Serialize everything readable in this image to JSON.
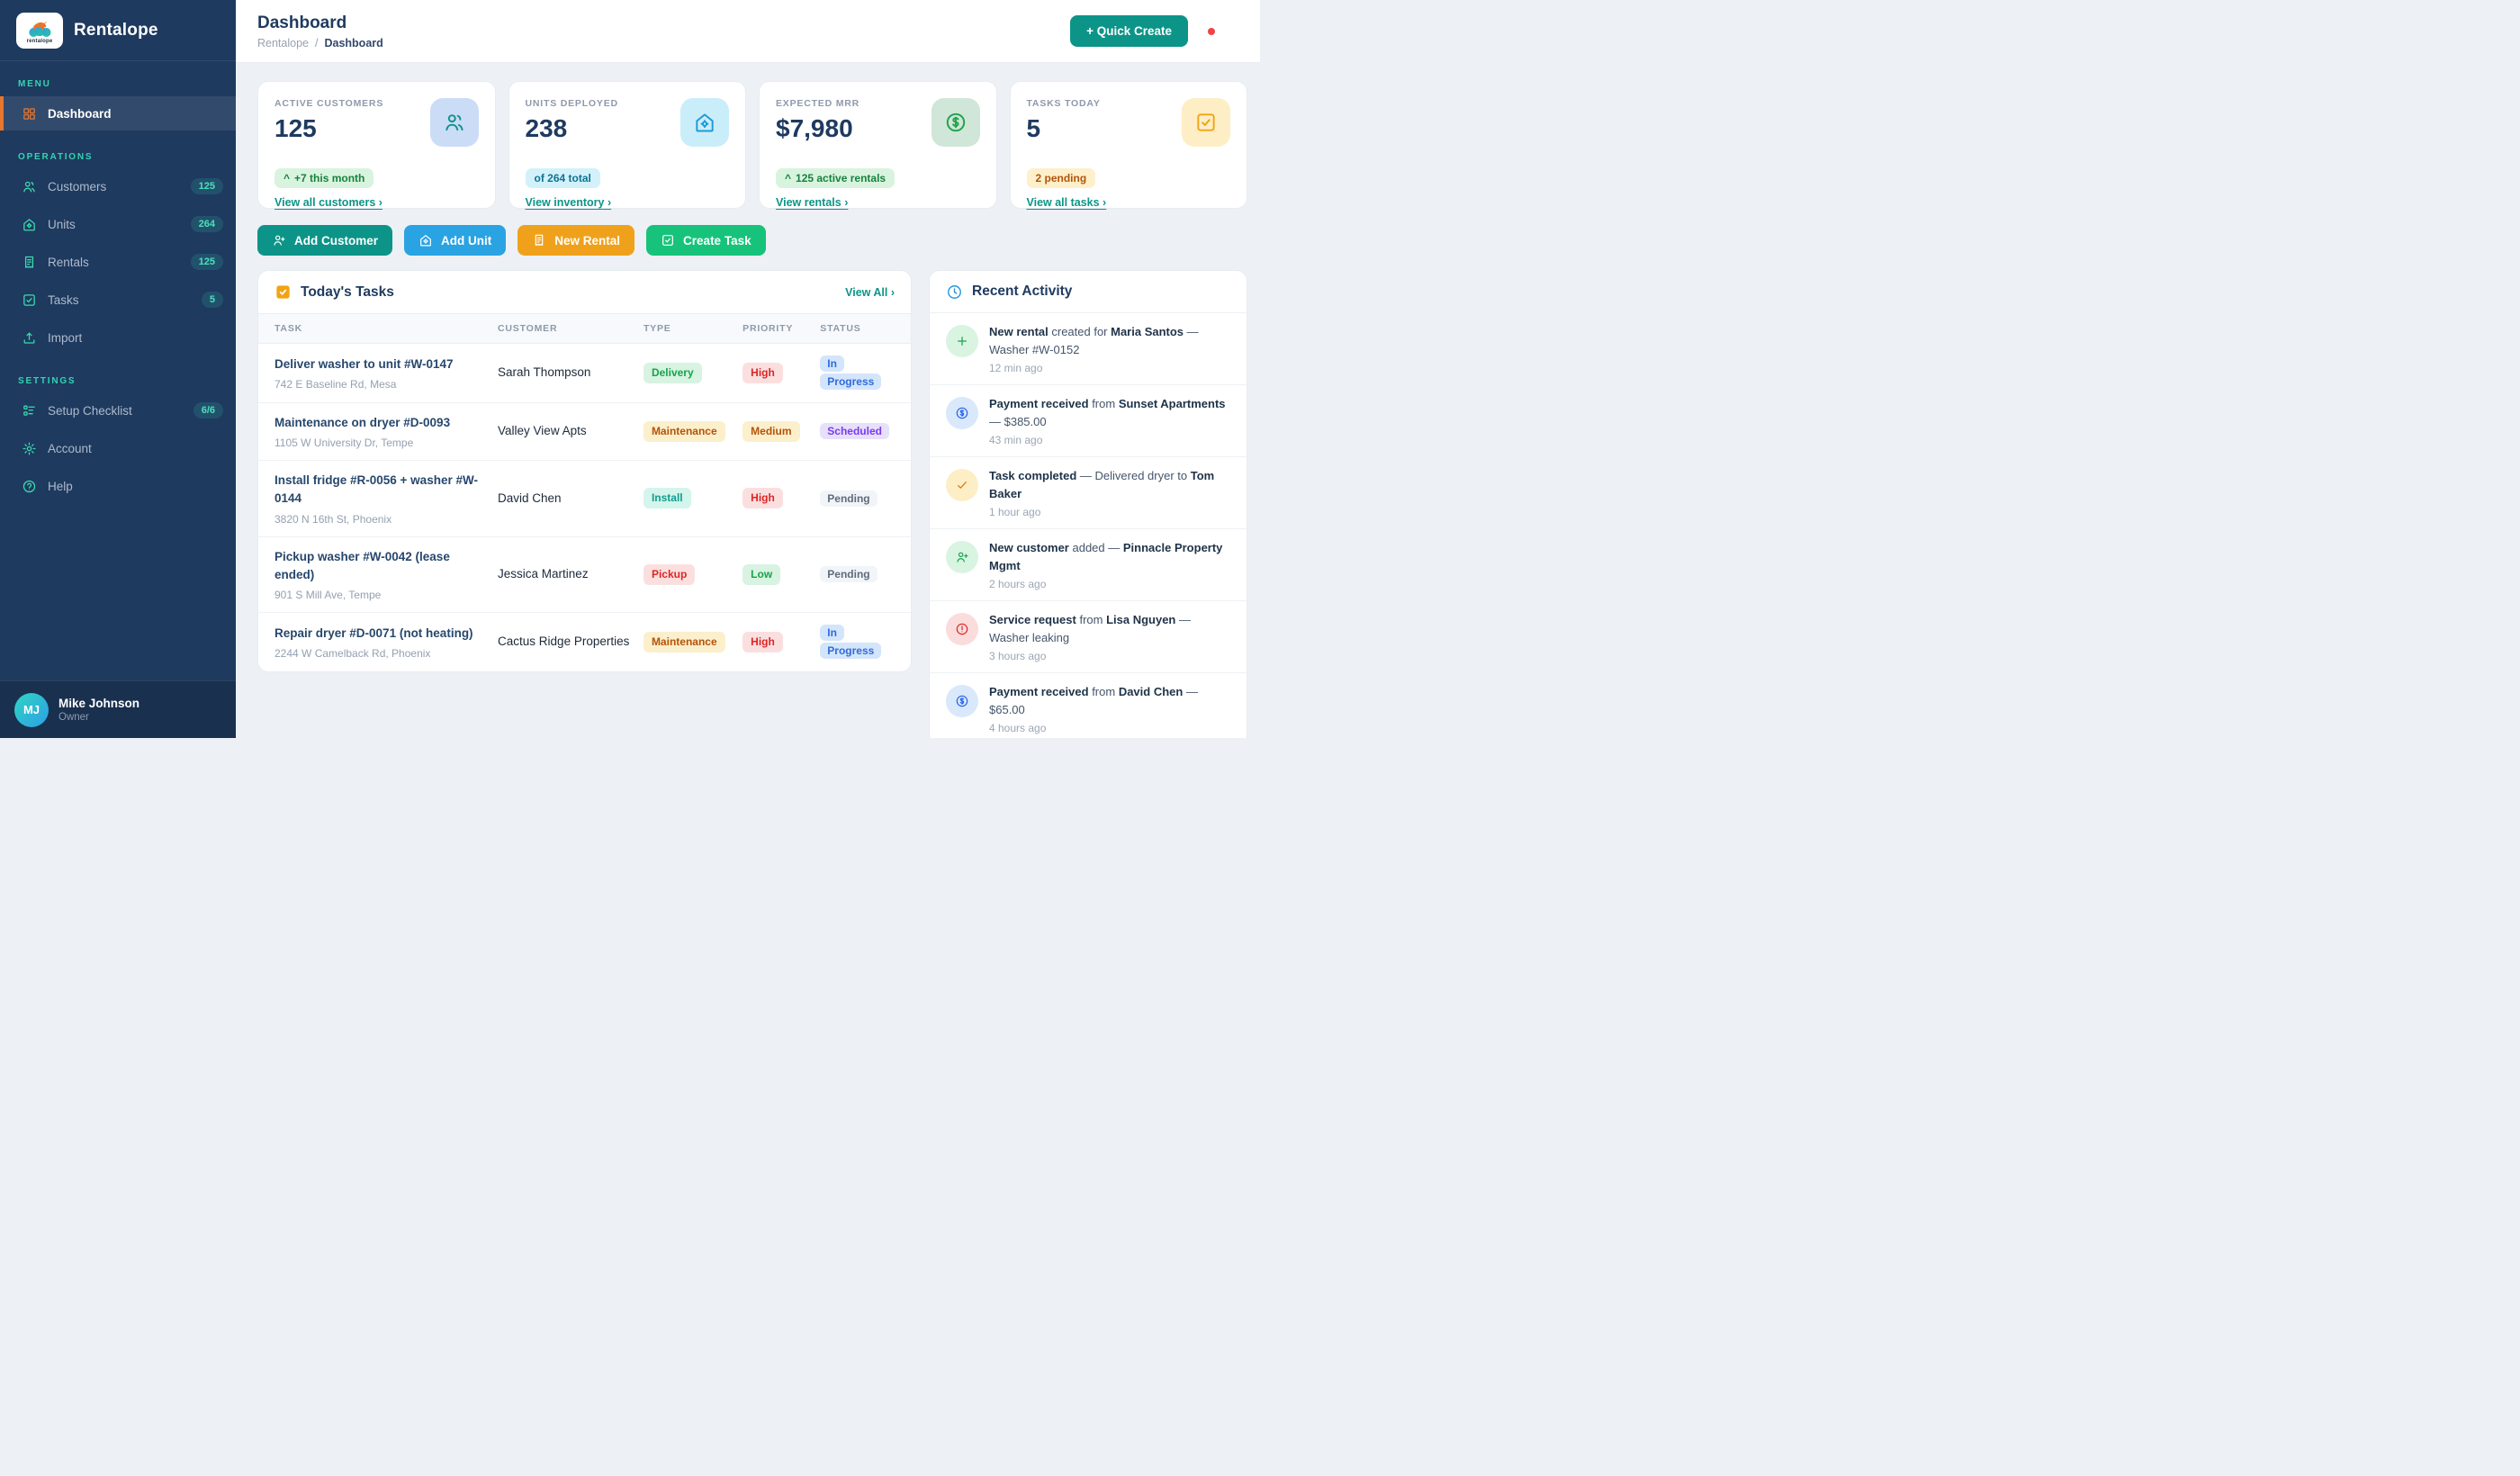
{
  "brand": {
    "name": "Rentalope",
    "logo_text": "rentalope"
  },
  "header": {
    "title": "Dashboard",
    "breadcrumb": [
      "Rentalope",
      "Dashboard"
    ],
    "separator": "/",
    "quick_create_label": "+ Quick Create"
  },
  "sidebar": {
    "sections": [
      {
        "label": "MENU",
        "items": [
          {
            "label": "Dashboard",
            "icon": "dashboard-grid-icon",
            "active": true
          }
        ]
      },
      {
        "label": "OPERATIONS",
        "items": [
          {
            "label": "Customers",
            "icon": "users-icon",
            "badge": "125"
          },
          {
            "label": "Units",
            "icon": "home-gear-icon",
            "badge": "264"
          },
          {
            "label": "Rentals",
            "icon": "receipt-icon",
            "badge": "125"
          },
          {
            "label": "Tasks",
            "icon": "check-square-icon",
            "badge": "5"
          },
          {
            "label": "Import",
            "icon": "upload-icon"
          }
        ]
      },
      {
        "label": "SETTINGS",
        "items": [
          {
            "label": "Setup Checklist",
            "icon": "checklist-icon",
            "badge": "6/6"
          },
          {
            "label": "Account",
            "icon": "gear-icon"
          },
          {
            "label": "Help",
            "icon": "help-circle-icon"
          }
        ]
      }
    ],
    "user": {
      "initials": "MJ",
      "name": "Mike Johnson",
      "role": "Owner"
    }
  },
  "stats": [
    {
      "label": "ACTIVE CUSTOMERS",
      "value": "125",
      "pill": {
        "caret": true,
        "text": "+7 this month",
        "variant": "v-sgreen"
      },
      "link": "View all customers ›",
      "icon": "users-icon",
      "icon_bg": "#cbdcf6",
      "icon_color": "#0d9488"
    },
    {
      "label": "UNITS DEPLOYED",
      "value": "238",
      "pill": {
        "caret": false,
        "text": "of 264 total",
        "variant": "v-scyan"
      },
      "link": "View inventory ›",
      "icon": "home-gear-icon",
      "icon_bg": "#c9eefa",
      "icon_color": "#1d9bd8"
    },
    {
      "label": "EXPECTED MRR",
      "value": "$7,980",
      "pill": {
        "caret": true,
        "text": "125 active rentals",
        "variant": "v-sgreen"
      },
      "link": "View rentals ›",
      "icon": "dollar-circle-icon",
      "icon_bg": "#cfe6d8",
      "icon_color": "#1fa24a"
    },
    {
      "label": "TASKS TODAY",
      "value": "5",
      "pill": {
        "caret": false,
        "text": "2 pending",
        "variant": "v-syellow"
      },
      "link": "View all tasks ›",
      "icon": "check-square-icon",
      "icon_bg": "#fdeec6",
      "icon_color": "#f2a313"
    }
  ],
  "actions": [
    {
      "label": "Add Customer",
      "icon": "user-plus-icon",
      "color": "#0d9488"
    },
    {
      "label": "Add Unit",
      "icon": "home-gear-icon",
      "color": "#2aa3e3"
    },
    {
      "label": "New Rental",
      "icon": "receipt-icon",
      "color": "#f0a11b"
    },
    {
      "label": "Create Task",
      "icon": "check-square-icon",
      "color": "#17c37b"
    }
  ],
  "tasks_panel": {
    "title": "Today's Tasks",
    "view_all": "View All ›",
    "columns": [
      "TASK",
      "CUSTOMER",
      "TYPE",
      "PRIORITY",
      "STATUS"
    ],
    "rows": [
      {
        "title": "Deliver washer to unit #W-0147",
        "subtitle": "742 E Baseline Rd, Mesa",
        "customer": "Sarah Thompson",
        "type": {
          "t": "Delivery",
          "v": "v-green"
        },
        "priority": {
          "t": "High",
          "v": "v-red"
        },
        "status": {
          "t": "In Progress",
          "v": "v-blue"
        }
      },
      {
        "title": "Maintenance on dryer #D-0093",
        "subtitle": "1105 W University Dr, Tempe",
        "customer": "Valley View Apts",
        "type": {
          "t": "Maintenance",
          "v": "v-yellow"
        },
        "priority": {
          "t": "Medium",
          "v": "v-yellow"
        },
        "status": {
          "t": "Scheduled",
          "v": "v-violet"
        }
      },
      {
        "title": "Install fridge #R-0056 + washer #W-0144",
        "subtitle": "3820 N 16th St, Phoenix",
        "customer": "David Chen",
        "type": {
          "t": "Install",
          "v": "v-mint"
        },
        "priority": {
          "t": "High",
          "v": "v-red"
        },
        "status": {
          "t": "Pending",
          "v": "v-gray"
        }
      },
      {
        "title": "Pickup washer #W-0042 (lease ended)",
        "subtitle": "901 S Mill Ave, Tempe",
        "customer": "Jessica Martinez",
        "type": {
          "t": "Pickup",
          "v": "v-red"
        },
        "priority": {
          "t": "Low",
          "v": "v-green"
        },
        "status": {
          "t": "Pending",
          "v": "v-gray"
        }
      },
      {
        "title": "Repair dryer #D-0071 (not heating)",
        "subtitle": "2244 W Camelback Rd, Phoenix",
        "customer": "Cactus Ridge Properties",
        "type": {
          "t": "Maintenance",
          "v": "v-yellow"
        },
        "priority": {
          "t": "High",
          "v": "v-red"
        },
        "status": {
          "t": "In Progress",
          "v": "v-blue"
        }
      }
    ]
  },
  "activity_panel": {
    "title": "Recent Activity",
    "items": [
      {
        "icon": "plus-icon",
        "variant": "i-green",
        "segments": [
          {
            "t": "New rental",
            "b": true
          },
          {
            "t": " created for "
          },
          {
            "t": "Maria Santos",
            "b": true
          },
          {
            "t": " — Washer #W-0152"
          }
        ],
        "time": "12 min ago"
      },
      {
        "icon": "dollar-circle-icon",
        "variant": "i-blue",
        "segments": [
          {
            "t": "Payment received",
            "b": true
          },
          {
            "t": " from "
          },
          {
            "t": "Sunset Apartments",
            "b": true
          },
          {
            "t": " — $385.00"
          }
        ],
        "time": "43 min ago"
      },
      {
        "icon": "check-icon",
        "variant": "i-yellow",
        "segments": [
          {
            "t": "Task completed",
            "b": true
          },
          {
            "t": " — Delivered dryer to "
          },
          {
            "t": "Tom Baker",
            "b": true
          }
        ],
        "time": "1 hour ago"
      },
      {
        "icon": "user-plus-icon",
        "variant": "i-green",
        "segments": [
          {
            "t": "New customer",
            "b": true
          },
          {
            "t": " added — "
          },
          {
            "t": "Pinnacle Property Mgmt",
            "b": true
          }
        ],
        "time": "2 hours ago"
      },
      {
        "icon": "alert-circle-icon",
        "variant": "i-red",
        "segments": [
          {
            "t": "Service request",
            "b": true
          },
          {
            "t": " from "
          },
          {
            "t": "Lisa Nguyen",
            "b": true
          },
          {
            "t": " — Washer leaking"
          }
        ],
        "time": "3 hours ago"
      },
      {
        "icon": "dollar-circle-icon",
        "variant": "i-blue",
        "segments": [
          {
            "t": "Payment received",
            "b": true
          },
          {
            "t": " from "
          },
          {
            "t": "David Chen",
            "b": true
          },
          {
            "t": " — $65.00"
          }
        ],
        "time": "4 hours ago"
      }
    ]
  }
}
